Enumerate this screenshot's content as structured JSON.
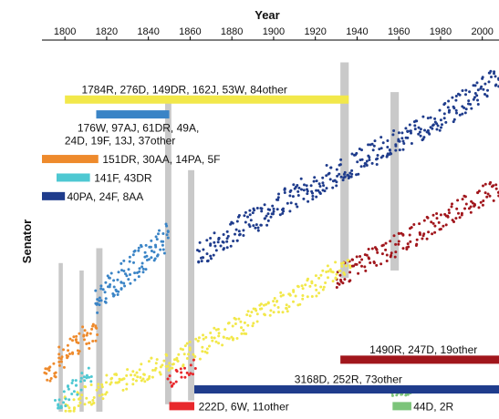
{
  "chart_data": {
    "type": "scatter",
    "title": "",
    "xlabel": "Year",
    "ylabel": "Senator",
    "xlim": [
      1789,
      2008
    ],
    "x_ticks": [
      1800,
      1820,
      1840,
      1860,
      1880,
      1900,
      1920,
      1940,
      1960,
      1980,
      2000
    ],
    "grid": false,
    "y_axis_ticks": false,
    "colors": {
      "navy": "#1f3c8c",
      "dark_red": "#a1161c",
      "yellow": "#f2e84a",
      "steel_blue": "#3a84c6",
      "orange": "#ee8a2c",
      "cyan": "#4ec8d2",
      "red": "#e8282c",
      "green": "#7cc47a",
      "gray": "#c9c9c9"
    },
    "shaded_years": [
      {
        "start": 1797,
        "end": 1799,
        "y_from": 0.6,
        "y_to": 1.0
      },
      {
        "start": 1807,
        "end": 1809,
        "y_from": 0.62,
        "y_to": 1.0
      },
      {
        "start": 1815,
        "end": 1818,
        "y_from": 0.56,
        "y_to": 1.0
      },
      {
        "start": 1848,
        "end": 1851,
        "y_from": 0.17,
        "y_to": 0.98
      },
      {
        "start": 1859,
        "end": 1862,
        "y_from": 0.35,
        "y_to": 0.97
      },
      {
        "start": 1932,
        "end": 1936,
        "y_from": 0.06,
        "y_to": 0.64
      },
      {
        "start": 1956,
        "end": 1960,
        "y_from": 0.14,
        "y_to": 0.62
      }
    ],
    "labeled_bars": [
      {
        "label": "1784R, 276D, 149DR, 162J, 53W, 84other",
        "color": "yellow",
        "start": 1800,
        "end": 1936,
        "y": 0.16,
        "label_x": 1808,
        "label_pos": "above"
      },
      {
        "label": "176W, 97AJ, 61DR, 49A, 24D, 19F, 13J, 37other",
        "color": "steel_blue",
        "start": 1815,
        "end": 1850,
        "y": 0.2,
        "label_x": 1806,
        "label_pos": "below"
      },
      {
        "label": "151DR, 30AA, 14PA, 5F",
        "color": "orange",
        "start": 1789,
        "end": 1816,
        "y": 0.32,
        "label_x": 1818,
        "label_pos": "right"
      },
      {
        "label": "141F, 43DR",
        "color": "cyan",
        "start": 1796,
        "end": 1812,
        "y": 0.37,
        "label_x": 1814,
        "label_pos": "right"
      },
      {
        "label": "40PA, 24F, 8AA",
        "color": "navy",
        "start": 1789,
        "end": 1800,
        "y": 0.42,
        "label_x": 1801,
        "label_pos": "right"
      },
      {
        "label": "1490R, 247D, 19other",
        "color": "dark_red",
        "start": 1932,
        "end": 2008,
        "y": 0.86,
        "label_x": 1946,
        "label_pos": "above"
      },
      {
        "label": "3168D, 252R, 73other",
        "color": "navy",
        "start": 1862,
        "end": 2008,
        "y": 0.94,
        "label_x": 1910,
        "label_pos": "above"
      },
      {
        "label": "222D, 6W, 11other",
        "color": "red",
        "start": 1850,
        "end": 1862,
        "y": 0.985,
        "label_x": 1864,
        "label_pos": "right"
      },
      {
        "label": "44D, 2R",
        "color": "green",
        "start": 1957,
        "end": 1966,
        "y": 0.985,
        "label_x": 1967,
        "label_pos": "right"
      }
    ],
    "series": [
      {
        "color": "navy",
        "x": [
          1864,
          1880,
          1900,
          1920,
          1940,
          1960,
          1980,
          2000,
          2008
        ],
        "y": [
          0.58,
          0.52,
          0.45,
          0.39,
          0.33,
          0.27,
          0.21,
          0.13,
          0.1
        ],
        "band": 0.07
      },
      {
        "color": "dark_red",
        "x": [
          1930,
          1950,
          1970,
          1990,
          2008
        ],
        "y": [
          0.64,
          0.58,
          0.52,
          0.45,
          0.4
        ],
        "band": 0.06
      },
      {
        "color": "yellow",
        "x": [
          1800,
          1820,
          1840,
          1860,
          1880,
          1900,
          1920,
          1936
        ],
        "y": [
          0.99,
          0.93,
          0.89,
          0.84,
          0.78,
          0.72,
          0.66,
          0.6
        ],
        "band": 0.06
      },
      {
        "color": "steel_blue",
        "x": [
          1815,
          1830,
          1850
        ],
        "y": [
          0.7,
          0.62,
          0.53
        ],
        "band": 0.08
      },
      {
        "color": "orange",
        "x": [
          1791,
          1800,
          1816
        ],
        "y": [
          0.9,
          0.84,
          0.78
        ],
        "band": 0.07
      },
      {
        "color": "cyan",
        "x": [
          1796,
          1804,
          1812
        ],
        "y": [
          0.98,
          0.94,
          0.9
        ],
        "band": 0.05
      },
      {
        "color": "red",
        "x": [
          1850,
          1862
        ],
        "y": [
          0.92,
          0.88
        ],
        "band": 0.04
      },
      {
        "color": "green",
        "x": [
          1957,
          1966
        ],
        "y": [
          0.955,
          0.95
        ],
        "band": 0.01
      }
    ]
  }
}
